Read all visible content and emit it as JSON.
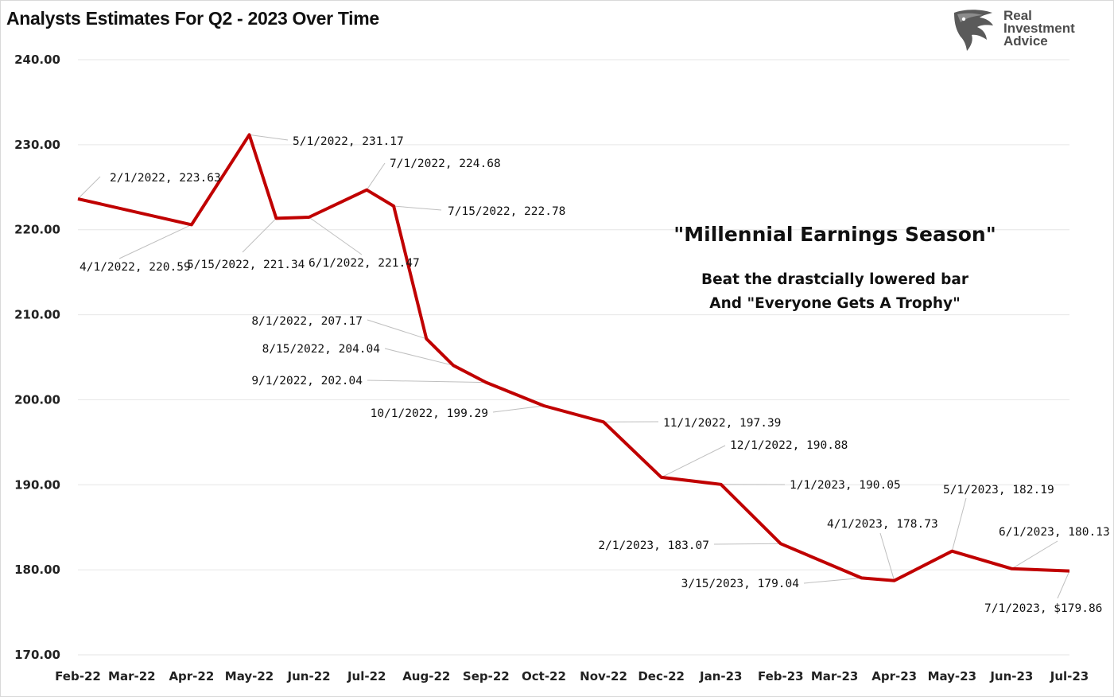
{
  "header": {
    "title": "Analysts Estimates For Q2 - 2023 Over Time"
  },
  "logo": {
    "icon": "eagle-head-icon",
    "line1": "Real",
    "line2": "Investment",
    "line3": "Advice"
  },
  "annotation": {
    "title": "\"Millennial Earnings Season\"",
    "line1": "Beat the drastcially lowered bar",
    "line2": "And \"Everyone Gets A Trophy\""
  },
  "colors": {
    "line": "#c00000",
    "grid": "#e6e6e6",
    "leader": "#bfbfbf"
  },
  "chart_data": {
    "type": "line",
    "title": "Analysts Estimates For Q2 - 2023 Over Time",
    "xlabel": "",
    "ylabel": "",
    "ylim": [
      170,
      240
    ],
    "y_ticks": [
      "240.00",
      "230.00",
      "220.00",
      "210.00",
      "200.00",
      "190.00",
      "180.00",
      "170.00"
    ],
    "x_ticks": [
      "Feb-22",
      "Mar-22",
      "Apr-22",
      "May-22",
      "Jun-22",
      "Jul-22",
      "Aug-22",
      "Sep-22",
      "Oct-22",
      "Nov-22",
      "Dec-22",
      "Jan-23",
      "Feb-23",
      "Mar-23",
      "Apr-23",
      "May-23",
      "Jun-23",
      "Jul-23"
    ],
    "grid": true,
    "legend": "none",
    "series": [
      {
        "points": [
          {
            "x": "2022-02-01",
            "y": 223.63,
            "label": "2/1/2022,  223.63"
          },
          {
            "x": "2022-04-01",
            "y": 220.59,
            "label": "4/1/2022,  220.59"
          },
          {
            "x": "2022-05-01",
            "y": 231.17,
            "label": "5/1/2022,  231.17"
          },
          {
            "x": "2022-05-15",
            "y": 221.34,
            "label": "5/15/2022,  221.34"
          },
          {
            "x": "2022-06-01",
            "y": 221.47,
            "label": "6/1/2022,  221.47"
          },
          {
            "x": "2022-07-01",
            "y": 224.68,
            "label": "7/1/2022,  224.68"
          },
          {
            "x": "2022-07-15",
            "y": 222.78,
            "label": "7/15/2022,  222.78"
          },
          {
            "x": "2022-08-01",
            "y": 207.17,
            "label": "8/1/2022,  207.17"
          },
          {
            "x": "2022-08-15",
            "y": 204.04,
            "label": "8/15/2022,  204.04"
          },
          {
            "x": "2022-09-01",
            "y": 202.04,
            "label": "9/1/2022,  202.04"
          },
          {
            "x": "2022-10-01",
            "y": 199.29,
            "label": "10/1/2022,  199.29"
          },
          {
            "x": "2022-11-01",
            "y": 197.39,
            "label": "11/1/2022,  197.39"
          },
          {
            "x": "2022-12-01",
            "y": 190.88,
            "label": "12/1/2022,  190.88"
          },
          {
            "x": "2023-01-01",
            "y": 190.05,
            "label": "1/1/2023,  190.05"
          },
          {
            "x": "2023-02-01",
            "y": 183.07,
            "label": "2/1/2023,  183.07"
          },
          {
            "x": "2023-03-15",
            "y": 179.04,
            "label": "3/15/2023,  179.04"
          },
          {
            "x": "2023-04-01",
            "y": 178.73,
            "label": "4/1/2023,  178.73"
          },
          {
            "x": "2023-05-01",
            "y": 182.19,
            "label": "5/1/2023,  182.19"
          },
          {
            "x": "2023-06-01",
            "y": 180.13,
            "label": "6/1/2023,  180.13"
          },
          {
            "x": "2023-07-01",
            "y": 179.86,
            "label": "7/1/2023, $179.86"
          }
        ]
      }
    ]
  }
}
